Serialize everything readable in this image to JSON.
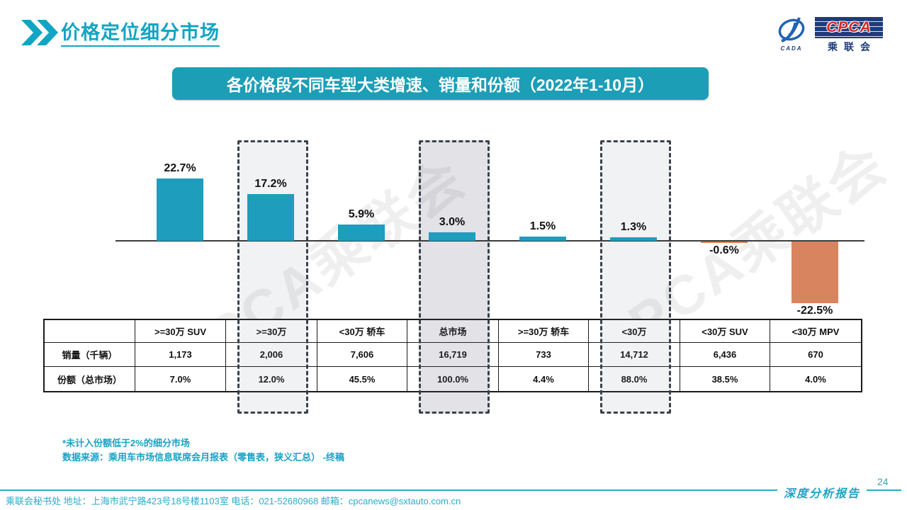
{
  "header": {
    "title": "价格定位细分市场",
    "logo": {
      "org_en": "CPCA",
      "org_cn": "乘联会",
      "emblem_caption": "CADA"
    }
  },
  "banner": {
    "title": "各价格段不同车型大类增速、销量和份额（2022年1-10月）"
  },
  "chart_data": {
    "type": "bar",
    "title": "各价格段不同车型大类增速、销量和份额（2022年1-10月）",
    "categories": [
      ">=30万 SUV",
      ">=30万",
      "<30万 轿车",
      "总市场",
      ">=30万 轿车",
      "<30万",
      "<30万 SUV",
      "<30万 MPV"
    ],
    "values": [
      22.7,
      17.2,
      5.9,
      3.0,
      1.5,
      1.3,
      -0.6,
      -22.5
    ],
    "labels": [
      "22.7%",
      "17.2%",
      "5.9%",
      "3.0%",
      "1.5%",
      "1.3%",
      "-0.6%",
      "-22.5%"
    ],
    "unit": "%",
    "ylim": [
      -25,
      25
    ],
    "grid": false,
    "highlighted_indexes": [
      1,
      3,
      5
    ],
    "highlighted_categories": [
      ">=30万",
      "总市场",
      "<30万"
    ],
    "colors": {
      "positive": "#1E9DBC",
      "negative": "#D7845F",
      "axis": "#3C3C3C"
    }
  },
  "table": {
    "corner": "",
    "columns": [
      ">=30万 SUV",
      ">=30万",
      "<30万 轿车",
      "总市场",
      ">=30万 轿车",
      "<30万",
      "<30万 SUV",
      "<30万 MPV"
    ],
    "rows": [
      {
        "label": "销量（千辆）",
        "values": [
          "1,173",
          "2,006",
          "7,606",
          "16,719",
          "733",
          "14,712",
          "6,436",
          "670"
        ]
      },
      {
        "label": "份额（总市场）",
        "values": [
          "7.0%",
          "12.0%",
          "45.5%",
          "100.0%",
          "4.4%",
          "88.0%",
          "38.5%",
          "4.0%"
        ]
      }
    ]
  },
  "notes": {
    "line1": "*未计入份额低于2%的细分市场",
    "line2": "数据来源：乘用车市场信息联席会月报表（零售表，狭义汇总） -终稿"
  },
  "footer": {
    "contact": "乘联会秘书处  地址：上海市武宁路423号18号楼1103室  电话：021-52680968  邮箱：cpcanews@sxtauto.com.cn",
    "report_label": "深度分析报告",
    "page_number": "24"
  },
  "watermark": {
    "text": "CPCA乘联会"
  }
}
